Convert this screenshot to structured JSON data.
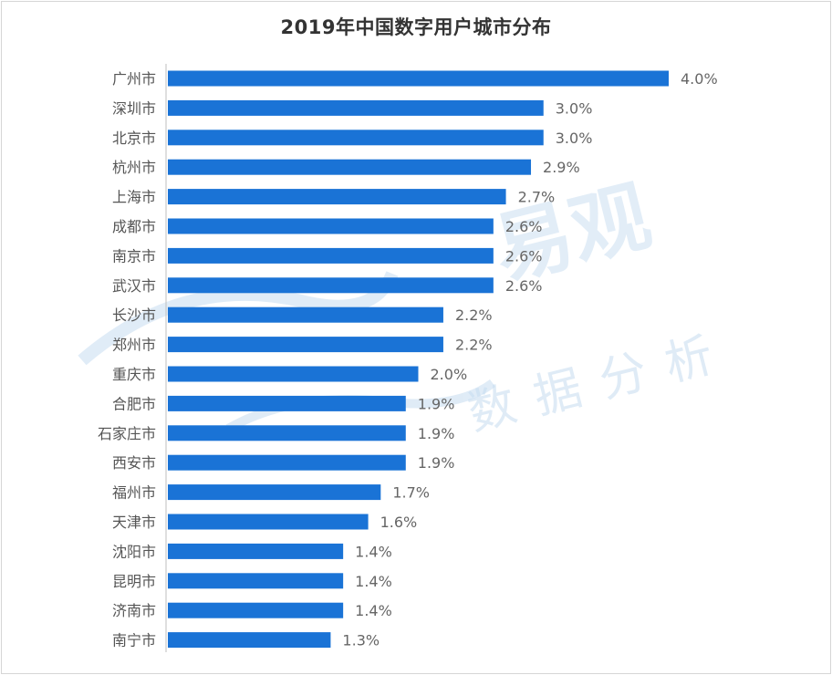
{
  "chart_data": {
    "type": "bar",
    "orientation": "horizontal",
    "title": "2019年中国数字用户城市分布",
    "categories": [
      "广州市",
      "深圳市",
      "北京市",
      "杭州市",
      "上海市",
      "成都市",
      "南京市",
      "武汉市",
      "长沙市",
      "郑州市",
      "重庆市",
      "合肥市",
      "石家庄市",
      "西安市",
      "福州市",
      "天津市",
      "沈阳市",
      "昆明市",
      "济南市",
      "南宁市"
    ],
    "values": [
      4.0,
      3.0,
      3.0,
      2.9,
      2.7,
      2.6,
      2.6,
      2.6,
      2.2,
      2.2,
      2.0,
      1.9,
      1.9,
      1.9,
      1.7,
      1.6,
      1.4,
      1.4,
      1.4,
      1.3
    ],
    "data_labels": [
      "4.0%",
      "3.0%",
      "3.0%",
      "2.9%",
      "2.7%",
      "2.6%",
      "2.6%",
      "2.6%",
      "2.2%",
      "2.2%",
      "2.0%",
      "1.9%",
      "1.9%",
      "1.9%",
      "1.7%",
      "1.6%",
      "1.4%",
      "1.4%",
      "1.4%",
      "1.3%"
    ],
    "xlabel": "",
    "ylabel": "",
    "xlim": [
      0,
      4.0
    ],
    "grid": false,
    "legend": "none",
    "bar_color": "#1a73d6"
  },
  "watermark": {
    "brand": "易观",
    "tagline": "数据分析"
  },
  "colors": {
    "bar": "#1a73d6",
    "label_text": "#555555",
    "value_text": "#666666",
    "axis_line": "#bfbfbf",
    "watermark": "#c6dcf0"
  }
}
